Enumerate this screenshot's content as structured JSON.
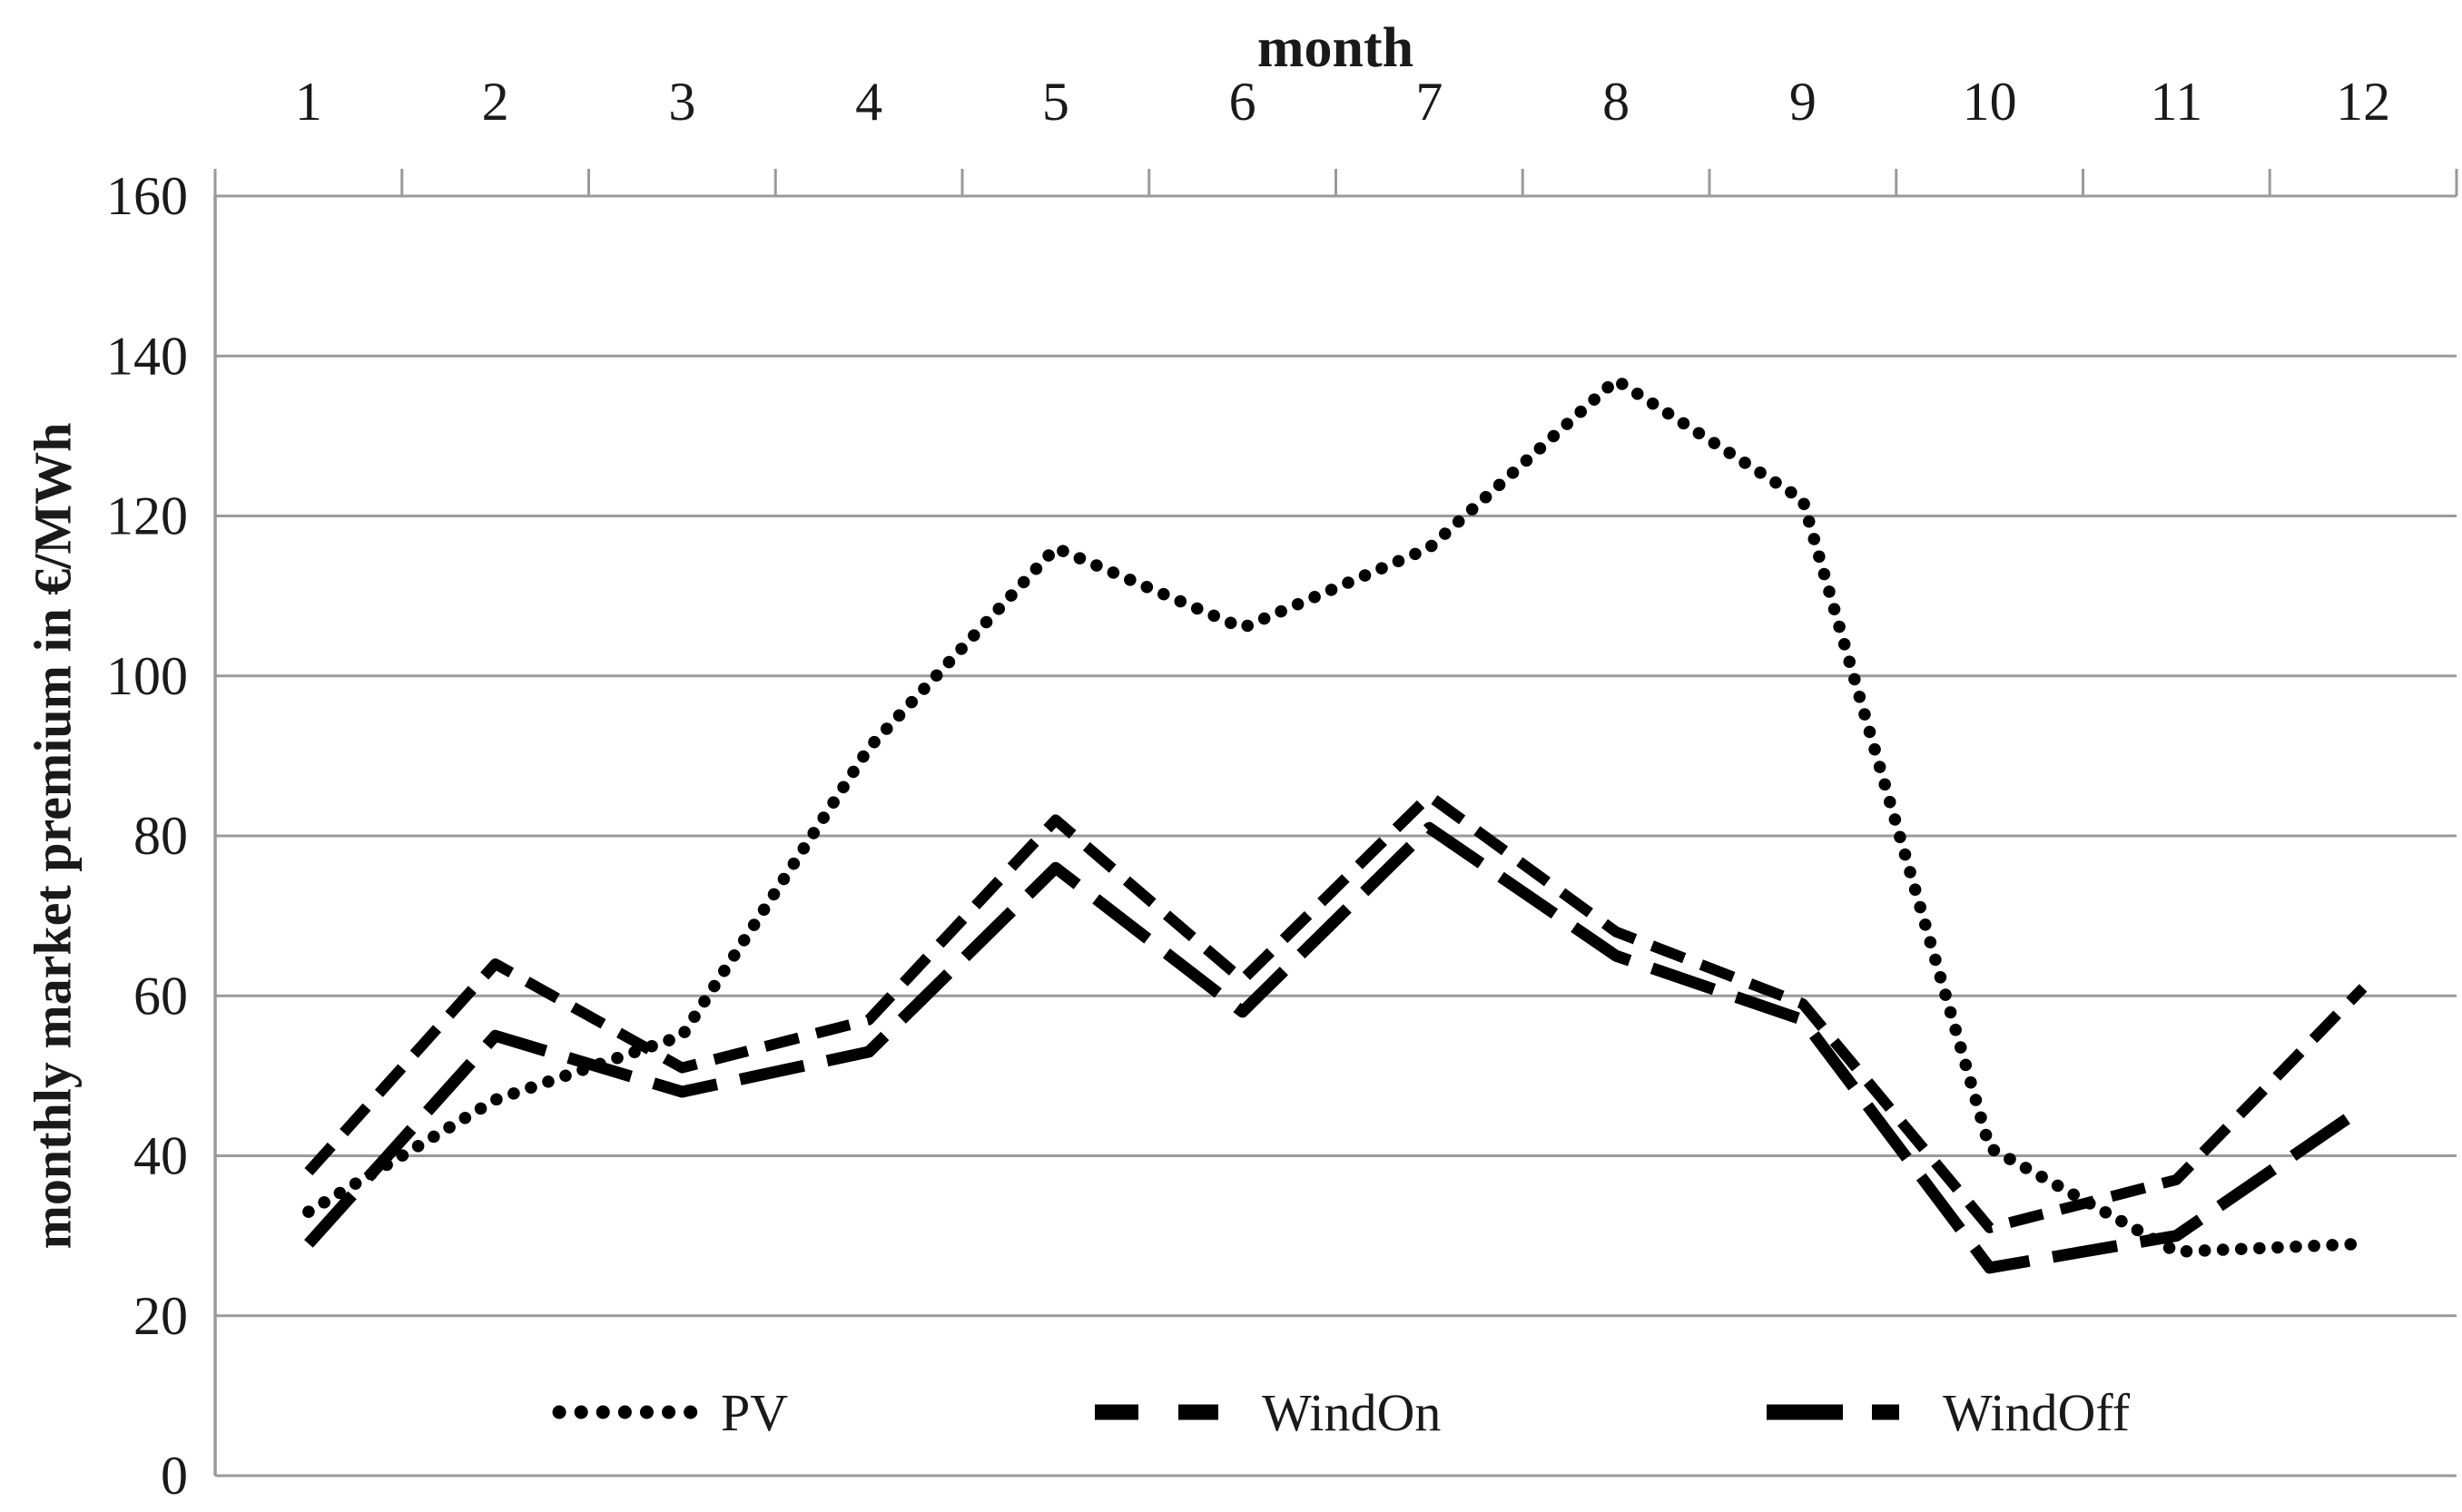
{
  "chart_data": {
    "type": "line",
    "xlabel": "month",
    "ylabel": "monthly market premium in €/MWh",
    "categories": [
      1,
      2,
      3,
      4,
      5,
      6,
      7,
      8,
      9,
      10,
      11,
      12
    ],
    "series": [
      {
        "name": "PV",
        "style": "dotted",
        "values": [
          33,
          47,
          55,
          91,
          116,
          106,
          116,
          137,
          122,
          41,
          28,
          29
        ]
      },
      {
        "name": "WindOn",
        "style": "dashed",
        "values": [
          38,
          64,
          51,
          57,
          82,
          62,
          85,
          68,
          59,
          31,
          37,
          61
        ]
      },
      {
        "name": "WindOff",
        "style": "long-dash",
        "values": [
          29,
          55,
          48,
          53,
          76,
          58,
          81,
          65,
          57,
          26,
          30,
          46
        ]
      }
    ],
    "ylim": [
      0,
      160
    ],
    "yticks": [
      0,
      20,
      40,
      60,
      80,
      100,
      120,
      140,
      160
    ],
    "grid": true,
    "legend_position": "bottom-inside",
    "line_color": "#000000",
    "grid_color": "#9a9a9a",
    "text_color": "#1a1a1a"
  }
}
